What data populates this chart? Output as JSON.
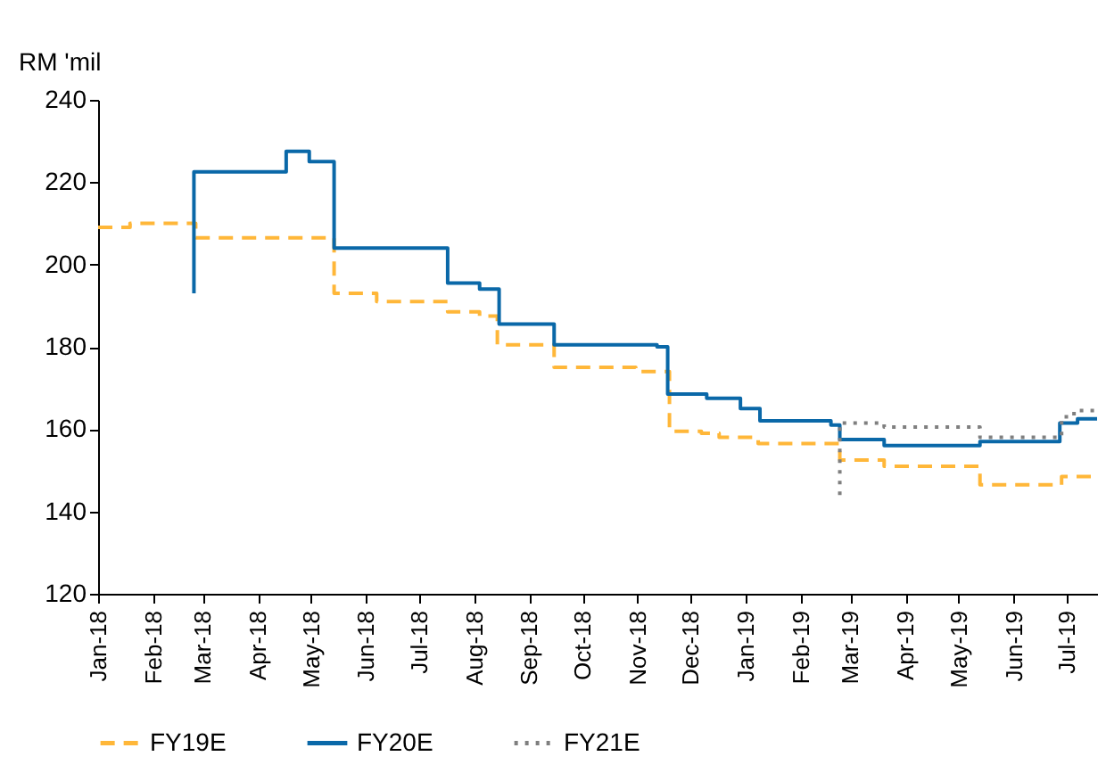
{
  "chart_data": {
    "type": "step",
    "ylabel": "RM 'mil",
    "xlim": [
      "2018-01-01",
      "2019-07-18"
    ],
    "xticks": [
      {
        "value": "2018-01-01",
        "label": "Jan-18"
      },
      {
        "value": "2018-02-01",
        "label": "Feb-18"
      },
      {
        "value": "2018-03-01",
        "label": "Mar-18"
      },
      {
        "value": "2018-04-01",
        "label": "Apr-18"
      },
      {
        "value": "2018-05-01",
        "label": "May-18"
      },
      {
        "value": "2018-06-01",
        "label": "Jun-18"
      },
      {
        "value": "2018-07-01",
        "label": "Jul-18"
      },
      {
        "value": "2018-08-01",
        "label": "Aug-18"
      },
      {
        "value": "2018-09-01",
        "label": "Sep-18"
      },
      {
        "value": "2018-10-01",
        "label": "Oct-18"
      },
      {
        "value": "2018-11-01",
        "label": "Nov-18"
      },
      {
        "value": "2018-12-01",
        "label": "Dec-18"
      },
      {
        "value": "2019-01-01",
        "label": "Jan-19"
      },
      {
        "value": "2019-02-01",
        "label": "Feb-19"
      },
      {
        "value": "2019-03-01",
        "label": "Mar-19"
      },
      {
        "value": "2019-04-01",
        "label": "Apr-19"
      },
      {
        "value": "2019-05-01",
        "label": "May-19"
      },
      {
        "value": "2019-06-01",
        "label": "Jun-19"
      },
      {
        "value": "2019-07-01",
        "label": "Jul-19"
      }
    ],
    "ylim": [
      120,
      240
    ],
    "yticks": [
      120,
      140,
      160,
      180,
      200,
      220,
      240
    ],
    "grid": false,
    "legend": "bottom",
    "marker": "none",
    "series": [
      {
        "name": "FY19E",
        "color": "#ffb739",
        "line_style": "dashed",
        "x": [
          "2018-01-01",
          "2018-01-19",
          "2018-02-25",
          "2018-05-14",
          "2018-06-07",
          "2018-07-17",
          "2018-08-04",
          "2018-08-14",
          "2018-09-15",
          "2018-10-31",
          "2018-11-19",
          "2018-12-07",
          "2018-12-17",
          "2019-01-08",
          "2019-02-23",
          "2019-03-20",
          "2019-05-13",
          "2019-06-28",
          "2019-07-18"
        ],
        "values": [
          209,
          210,
          206.5,
          193,
          191,
          188.5,
          187.5,
          180.5,
          175,
          174,
          159.5,
          159,
          158,
          156.5,
          152.5,
          151,
          146.5,
          148.5,
          148.5
        ]
      },
      {
        "name": "FY20E",
        "color": "#0a68a8",
        "line_style": "solid",
        "x": [
          "2018-02-24",
          "2018-02-24",
          "2018-04-17",
          "2018-04-30",
          "2018-05-14",
          "2018-07-17",
          "2018-08-04",
          "2018-08-15",
          "2018-09-15",
          "2018-11-12",
          "2018-11-18",
          "2018-12-10",
          "2018-12-29",
          "2019-01-09",
          "2019-02-18",
          "2019-02-23",
          "2019-03-20",
          "2019-05-13",
          "2019-06-27",
          "2019-07-07",
          "2019-07-18"
        ],
        "values": [
          193,
          222.5,
          227.5,
          225,
          204,
          195.5,
          194,
          185.5,
          180.5,
          180,
          168.5,
          167.5,
          165,
          162,
          161,
          157.5,
          156,
          157,
          161.5,
          162.5,
          162.5
        ]
      },
      {
        "name": "FY21E",
        "color": "#7f7f7f",
        "line_style": "dotted",
        "x": [
          "2019-02-23",
          "2019-02-23",
          "2019-03-20",
          "2019-05-13",
          "2019-06-28",
          "2019-07-05",
          "2019-07-18"
        ],
        "values": [
          144,
          161.5,
          160.5,
          158,
          163,
          164.5,
          164.5
        ]
      }
    ]
  }
}
